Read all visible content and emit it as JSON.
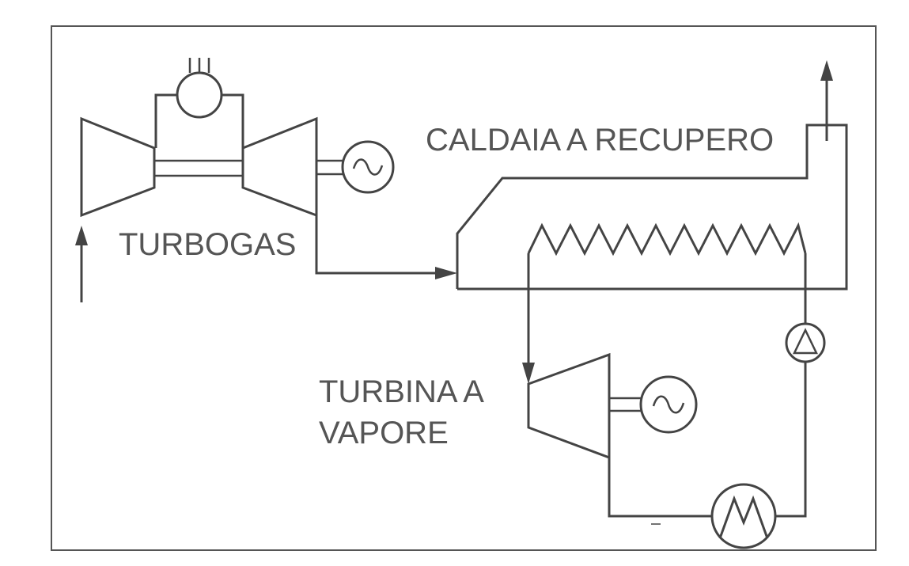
{
  "labels": {
    "turbogas": "TURBOGAS",
    "caldaia": "CALDAIA A RECUPERO",
    "turbina_line1": "TURBINA A",
    "turbina_line2": "VAPORE"
  },
  "colors": {
    "line": "#444444",
    "text": "#555555",
    "background": "#ffffff"
  }
}
